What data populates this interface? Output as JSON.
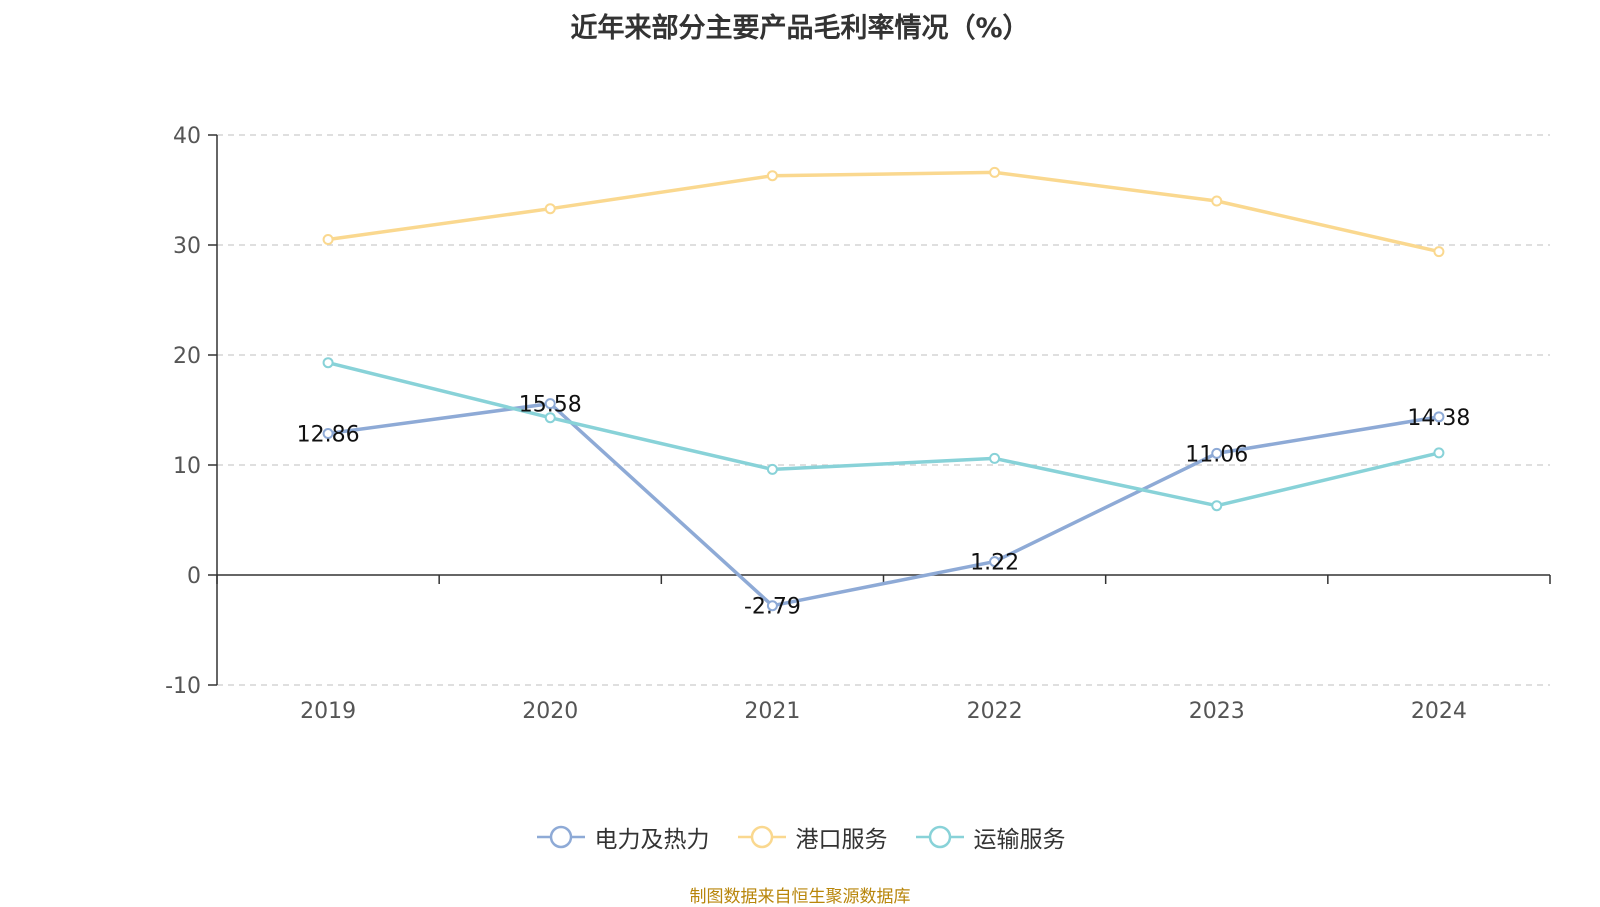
{
  "chart_data": {
    "type": "line",
    "title": "近年来部分主要产品毛利率情况（%）",
    "x": [
      "2019",
      "2020",
      "2021",
      "2022",
      "2023",
      "2024"
    ],
    "ylim": [
      -10,
      40
    ],
    "yticks": [
      -10,
      0,
      10,
      20,
      30,
      40
    ],
    "grid": true,
    "legend_position": "bottom",
    "series": [
      {
        "name": "电力及热力",
        "color": "#8eaad6",
        "values": [
          12.86,
          15.58,
          -2.79,
          1.22,
          11.06,
          14.38
        ],
        "labeled": true
      },
      {
        "name": "港口服务",
        "color": "#fad88f",
        "values": [
          30.5,
          33.3,
          36.3,
          36.6,
          34.0,
          29.4
        ],
        "labeled": false
      },
      {
        "name": "运输服务",
        "color": "#88d2d8",
        "values": [
          19.3,
          14.3,
          9.6,
          10.6,
          6.3,
          11.1
        ],
        "labeled": false
      }
    ],
    "source": "制图数据来自恒生聚源数据库"
  }
}
